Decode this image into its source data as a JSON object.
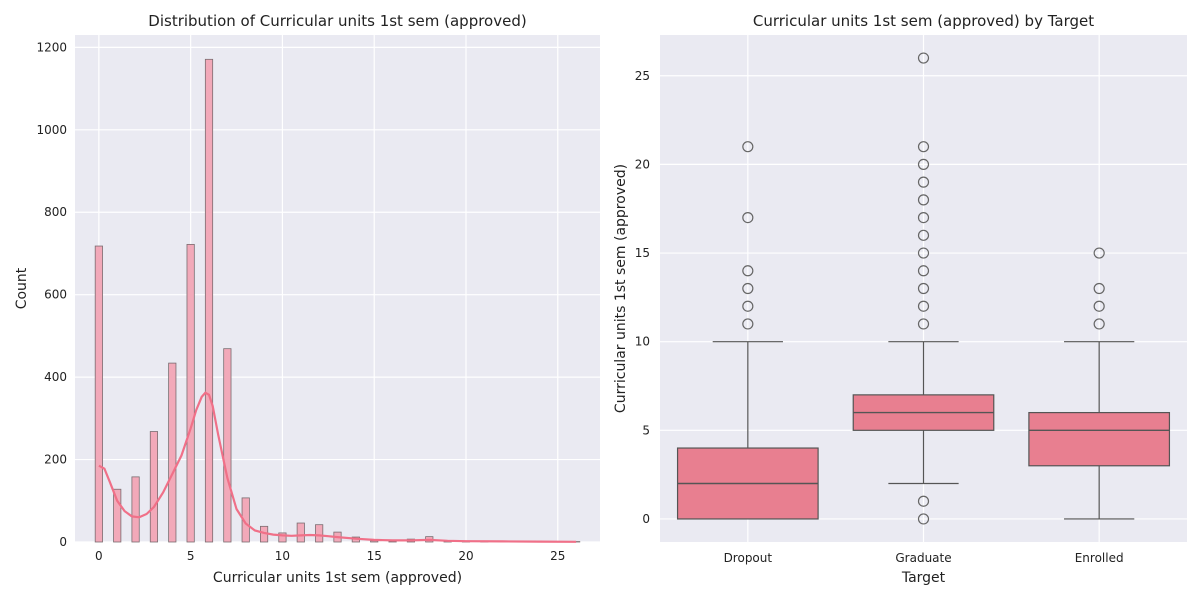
{
  "chart_data": [
    {
      "type": "histogram",
      "title": "Distribution of Curricular units 1st sem (approved)",
      "xlabel": "Curricular units 1st sem (approved)",
      "ylabel": "Count",
      "xlim": [
        -1.3,
        27.3
      ],
      "ylim": [
        0,
        1230
      ],
      "xticks": [
        0,
        5,
        10,
        15,
        20,
        25
      ],
      "yticks": [
        0,
        200,
        400,
        600,
        800,
        1000,
        1200
      ],
      "bars": [
        {
          "x": 0,
          "count": 718
        },
        {
          "x": 1,
          "count": 128
        },
        {
          "x": 2,
          "count": 158
        },
        {
          "x": 3,
          "count": 268
        },
        {
          "x": 4,
          "count": 434
        },
        {
          "x": 5,
          "count": 722
        },
        {
          "x": 6,
          "count": 1171
        },
        {
          "x": 7,
          "count": 469
        },
        {
          "x": 8,
          "count": 107
        },
        {
          "x": 9,
          "count": 38
        },
        {
          "x": 10,
          "count": 22
        },
        {
          "x": 11,
          "count": 46
        },
        {
          "x": 12,
          "count": 42
        },
        {
          "x": 13,
          "count": 24
        },
        {
          "x": 14,
          "count": 12
        },
        {
          "x": 15,
          "count": 3
        },
        {
          "x": 16,
          "count": 2
        },
        {
          "x": 17,
          "count": 7
        },
        {
          "x": 18,
          "count": 13
        },
        {
          "x": 19,
          "count": 1
        },
        {
          "x": 20,
          "count": 2
        },
        {
          "x": 21,
          "count": 2
        },
        {
          "x": 26,
          "count": 1
        }
      ],
      "kde": {
        "x": [
          0,
          0.3,
          0.6,
          1,
          1.4,
          1.8,
          2.2,
          2.6,
          3,
          3.5,
          4,
          4.5,
          5,
          5.3,
          5.6,
          5.8,
          6,
          6.2,
          6.5,
          7,
          7.5,
          8,
          8.5,
          9,
          9.5,
          10,
          10.5,
          11,
          11.5,
          12,
          12.5,
          13,
          14,
          15,
          16,
          17,
          18,
          19,
          20,
          22,
          24,
          26
        ],
        "y": [
          185,
          178,
          145,
          100,
          75,
          62,
          60,
          68,
          85,
          120,
          165,
          210,
          275,
          320,
          352,
          362,
          357,
          330,
          260,
          155,
          80,
          45,
          28,
          22,
          18,
          16,
          15,
          16,
          17,
          16,
          14,
          12,
          8,
          5,
          4,
          4,
          5,
          3,
          2,
          1.5,
          1,
          0.5
        ]
      },
      "colors": {
        "bar_fill": "#f2a9b9",
        "bar_edge": "#7a6c70",
        "kde": "#f07088"
      }
    },
    {
      "type": "box",
      "title": "Curricular units 1st sem (approved) by Target",
      "xlabel": "Target",
      "ylabel": "Curricular units 1st sem (approved)",
      "ylim": [
        -1.3,
        27.3
      ],
      "yticks": [
        0,
        5,
        10,
        15,
        20,
        25
      ],
      "categories": [
        "Dropout",
        "Graduate",
        "Enrolled"
      ],
      "boxes": [
        {
          "name": "Dropout",
          "whislo": 0,
          "q1": 0,
          "median": 2,
          "q3": 4,
          "whishi": 10,
          "fliers": [
            11,
            12,
            13,
            14,
            17,
            21
          ]
        },
        {
          "name": "Graduate",
          "whislo": 2,
          "q1": 5,
          "median": 6,
          "q3": 7,
          "whishi": 10,
          "fliers": [
            0,
            1,
            11,
            12,
            13,
            14,
            15,
            16,
            17,
            18,
            19,
            20,
            21,
            26
          ]
        },
        {
          "name": "Enrolled",
          "whislo": 0,
          "q1": 3,
          "median": 5,
          "q3": 6,
          "whishi": 10,
          "fliers": [
            11,
            12,
            13,
            15
          ]
        }
      ],
      "colors": {
        "box_fill": "#e87f90",
        "line": "#555555"
      }
    }
  ]
}
